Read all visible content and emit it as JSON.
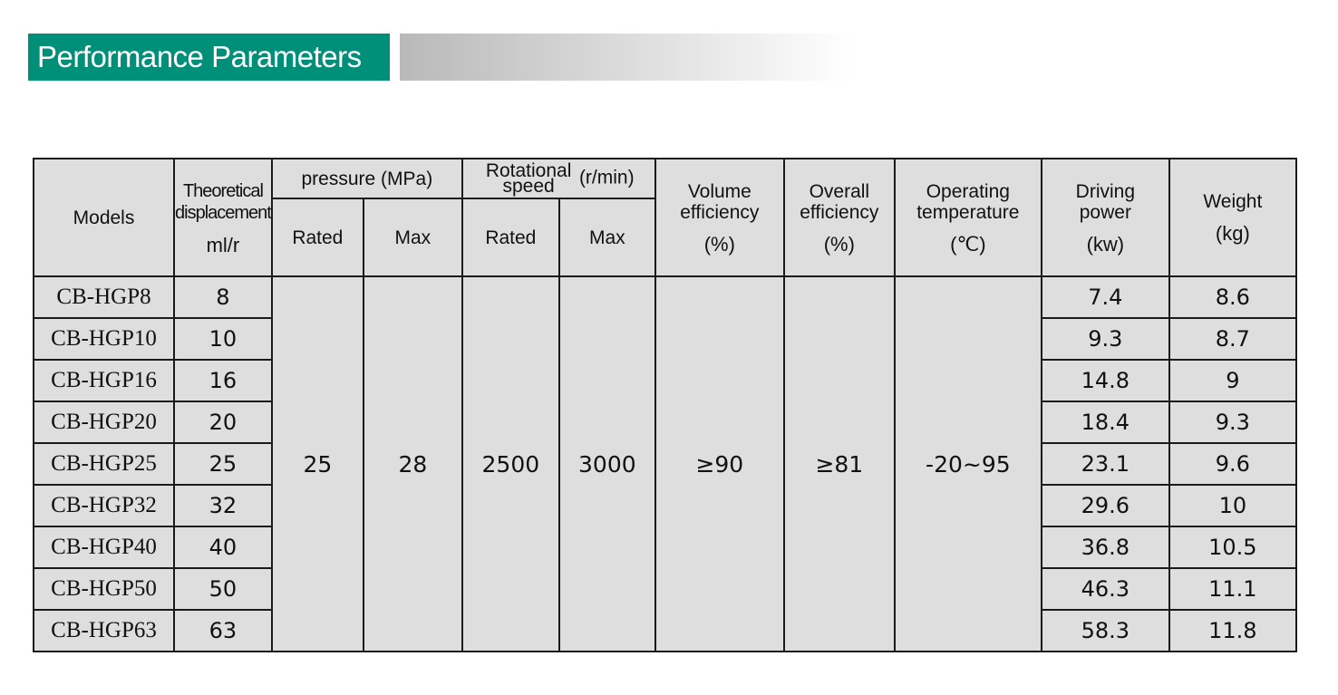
{
  "title": "Performance Parameters",
  "headers": {
    "models": "Models",
    "displacement": "Theoretical displacement",
    "displacement_unit": "ml/r",
    "pressure": "pressure",
    "pressure_unit": "(MPa)",
    "speed": "Rotational speed",
    "speed_unit": "(r/min)",
    "rated": "Rated",
    "max": "Max",
    "volume_eff": "Volume efficiency",
    "volume_eff_unit": "(%)",
    "overall_eff": "Overall efficiency",
    "overall_eff_unit": "(%)",
    "temp": "Operating temperature",
    "temp_unit": "(℃)",
    "power": "Driving power",
    "power_unit": "(kw)",
    "weight": "Weight",
    "weight_unit": "(kg)"
  },
  "shared": {
    "pressure_rated": "25",
    "pressure_max": "28",
    "speed_rated": "2500",
    "speed_max": "3000",
    "volume_eff": "≥90",
    "overall_eff": "≥81",
    "temp": "-20~95"
  },
  "rows": [
    {
      "model": "CB-HGP8",
      "disp": "8",
      "power": "7.4",
      "weight": "8.6"
    },
    {
      "model": "CB-HGP10",
      "disp": "10",
      "power": "9.3",
      "weight": "8.7"
    },
    {
      "model": "CB-HGP16",
      "disp": "16",
      "power": "14.8",
      "weight": "9"
    },
    {
      "model": "CB-HGP20",
      "disp": "20",
      "power": "18.4",
      "weight": "9.3"
    },
    {
      "model": "CB-HGP25",
      "disp": "25",
      "power": "23.1",
      "weight": "9.6"
    },
    {
      "model": "CB-HGP32",
      "disp": "32",
      "power": "29.6",
      "weight": "10"
    },
    {
      "model": "CB-HGP40",
      "disp": "40",
      "power": "36.8",
      "weight": "10.5"
    },
    {
      "model": "CB-HGP50",
      "disp": "50",
      "power": "46.3",
      "weight": "11.1"
    },
    {
      "model": "CB-HGP63",
      "disp": "63",
      "power": "58.3",
      "weight": "11.8"
    }
  ],
  "colors": {
    "title_bg": "#008f79",
    "table_bg": "#dedede"
  }
}
